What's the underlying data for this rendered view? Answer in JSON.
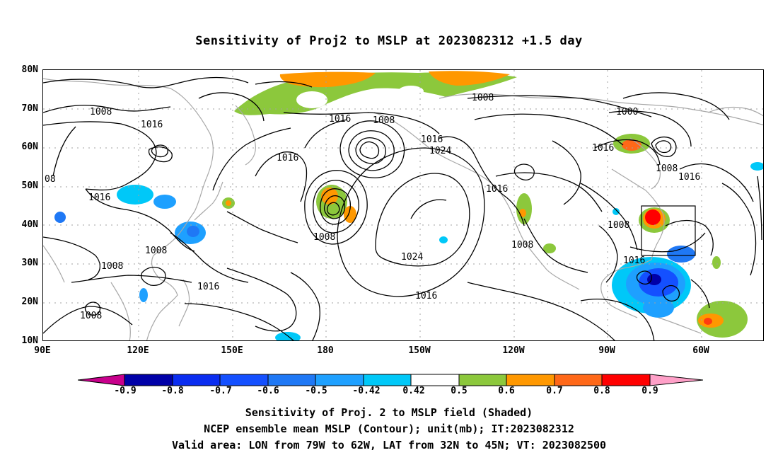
{
  "title": "Sensitivity of Proj2 to MSLP at 2023082312 +1.5 day",
  "lat_labels": [
    "80N",
    "70N",
    "60N",
    "50N",
    "40N",
    "30N",
    "20N",
    "10N"
  ],
  "lon_labels": [
    "90E",
    "120E",
    "150E",
    "180",
    "150W",
    "120W",
    "90W",
    "60W"
  ],
  "contour_labels": [
    "1008",
    "1016",
    "08",
    "1016",
    "1008",
    "1008",
    "1016",
    "1008",
    "1016",
    "1008",
    "1016",
    "1024",
    "1008",
    "1024",
    "1016",
    "1016",
    "1008",
    "1008",
    "1016",
    "1000",
    "1008",
    "1016",
    "1008",
    "1016"
  ],
  "colorbar": {
    "labels": [
      "-0.9",
      "-0.8",
      "-0.7",
      "-0.6",
      "-0.5",
      "-0.42",
      "0.42",
      "0.5",
      "0.6",
      "0.7",
      "0.8",
      "0.9"
    ],
    "colors": [
      "#0000a8",
      "#0a2df0",
      "#1450ff",
      "#1f78f5",
      "#1ea0ff",
      "#00c8f8",
      "#ffffff",
      "#8cc83c",
      "#ff9800",
      "#ff6818",
      "#ff3c10",
      "#ff0000"
    ],
    "left_extend_color": "#c8008c",
    "right_extend_color": "#ffa0c8"
  },
  "captions": [
    "Sensitivity of Proj. 2 to MSLP field (Shaded)",
    "NCEP ensemble mean MSLP (Contour); unit(mb); IT:2023082312",
    "Valid area: LON from 79W to 62W, LAT from 32N to 45N; VT: 2023082500"
  ]
}
